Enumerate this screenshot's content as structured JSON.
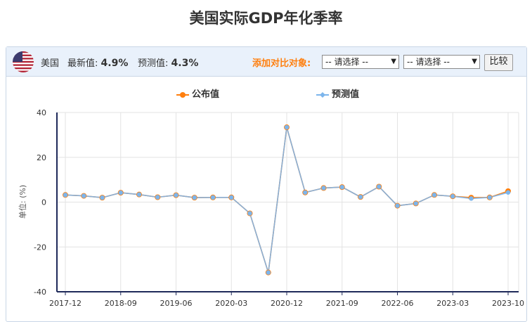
{
  "title": "美国实际GDP年化季率",
  "toolbar": {
    "country": "美国",
    "latest_label": "最新值:",
    "latest_value": "4.9%",
    "forecast_label": "预测值:",
    "forecast_value": "4.3%",
    "compare_label": "添加对比对象:",
    "select1": "-- 请选择 --",
    "select2": "-- 请选择 --",
    "compare_button": "比较"
  },
  "colors": {
    "published": "#ff7f0e",
    "forecast": "#7cb5ec",
    "axis": "#1f2a5a"
  },
  "chart_data": {
    "type": "line",
    "ylabel": "单位: (%)",
    "ylim": [
      -40,
      40
    ],
    "yticks": [
      40,
      20,
      0,
      -20,
      -40
    ],
    "xtick_labels": [
      "2017-12",
      "2018-09",
      "2019-06",
      "2020-03",
      "2020-12",
      "2021-09",
      "2022-06",
      "2023-03",
      "2023-10"
    ],
    "xtick_index": [
      0,
      3,
      6,
      9,
      12,
      15,
      18,
      21,
      24
    ],
    "x": [
      "2017-12",
      "2018-03",
      "2018-06",
      "2018-09",
      "2018-12",
      "2019-03",
      "2019-06",
      "2019-09",
      "2019-12",
      "2020-03",
      "2020-06",
      "2020-09",
      "2020-12",
      "2021-03",
      "2021-06",
      "2021-09",
      "2021-12",
      "2022-03",
      "2022-06",
      "2022-09",
      "2022-12",
      "2023-03",
      "2023-06",
      "2023-09",
      "2023-10"
    ],
    "legend_position": "top",
    "series": [
      {
        "name": "公布值",
        "color": "#ff7f0e",
        "values": [
          3.2,
          2.8,
          2.0,
          4.2,
          3.4,
          2.2,
          3.1,
          2.0,
          2.1,
          2.1,
          -5.0,
          -31.4,
          33.4,
          4.3,
          6.3,
          6.7,
          2.3,
          6.9,
          -1.6,
          -0.6,
          3.2,
          2.6,
          2.0,
          2.1,
          4.9
        ]
      },
      {
        "name": "预测值",
        "color": "#7cb5ec",
        "values": [
          3.2,
          2.8,
          2.0,
          4.2,
          3.4,
          2.2,
          3.1,
          2.0,
          2.1,
          2.1,
          -5.0,
          -31.4,
          33.4,
          4.3,
          6.3,
          6.7,
          2.3,
          6.9,
          -1.6,
          -0.6,
          3.2,
          2.6,
          1.6,
          2.1,
          4.3
        ]
      }
    ]
  }
}
